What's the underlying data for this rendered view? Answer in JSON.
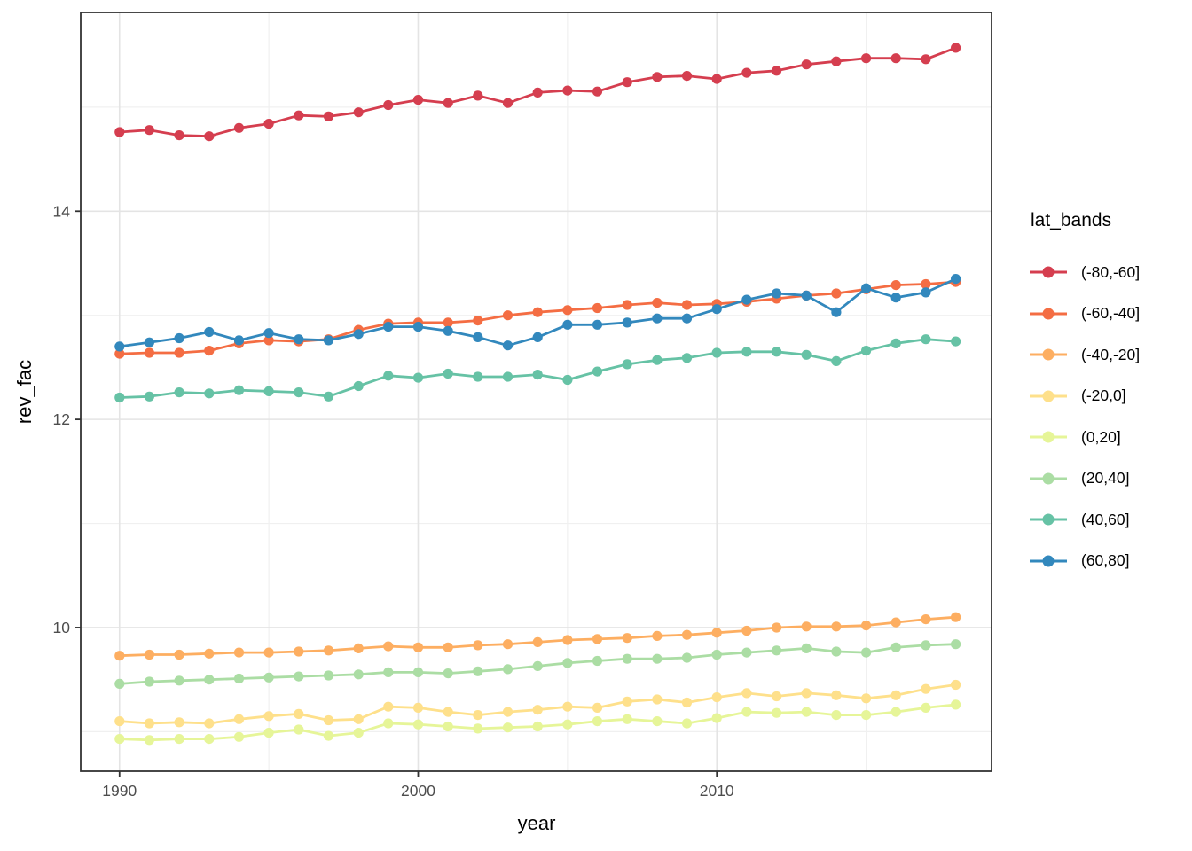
{
  "figure": {
    "background": "#ffffff",
    "panel_background": "#ffffff",
    "panel_border_color": "#333333",
    "major_grid_color": "#e4e4e4",
    "minor_grid_color": "#f0f0f0",
    "tick_mark_color": "#333333",
    "tick_label_color": "#4d4d4d"
  },
  "chart_data": {
    "type": "line",
    "title": "",
    "xlabel": "year",
    "ylabel": "rev_fac",
    "legend_title": "lat_bands",
    "legend_position": "right",
    "grid": "on",
    "marker": "filled-circle",
    "xlim": [
      1988.7,
      2019.2
    ],
    "ylim": [
      8.62,
      15.91
    ],
    "x_major_ticks": [
      1990,
      2000,
      2010
    ],
    "x_minor_gridlines": [
      1995,
      2005,
      2015
    ],
    "y_major_ticks": [
      10,
      12,
      14
    ],
    "y_minor_gridlines": [
      9,
      11,
      13,
      15
    ],
    "x": [
      1990,
      1991,
      1992,
      1993,
      1994,
      1995,
      1996,
      1997,
      1998,
      1999,
      2000,
      2001,
      2002,
      2003,
      2004,
      2005,
      2006,
      2007,
      2008,
      2009,
      2010,
      2011,
      2012,
      2013,
      2014,
      2015,
      2016,
      2017,
      2018
    ],
    "series": [
      {
        "name": "(-80,-60]",
        "color": "#d53e4f",
        "values": [
          14.76,
          14.78,
          14.73,
          14.72,
          14.8,
          14.84,
          14.92,
          14.91,
          14.95,
          15.02,
          15.07,
          15.04,
          15.11,
          15.04,
          15.14,
          15.16,
          15.15,
          15.24,
          15.29,
          15.3,
          15.27,
          15.33,
          15.35,
          15.41,
          15.44,
          15.47,
          15.47,
          15.46,
          15.57
        ]
      },
      {
        "name": "(-60,-40]",
        "color": "#f46d43",
        "values": [
          12.63,
          12.64,
          12.64,
          12.66,
          12.73,
          12.76,
          12.75,
          12.77,
          12.86,
          12.92,
          12.93,
          12.93,
          12.95,
          13.0,
          13.03,
          13.05,
          13.07,
          13.1,
          13.12,
          13.1,
          13.11,
          13.13,
          13.16,
          13.19,
          13.21,
          13.25,
          13.29,
          13.3,
          13.32
        ]
      },
      {
        "name": "(-40,-20]",
        "color": "#fdae61",
        "values": [
          9.73,
          9.74,
          9.74,
          9.75,
          9.76,
          9.76,
          9.77,
          9.78,
          9.8,
          9.82,
          9.81,
          9.81,
          9.83,
          9.84,
          9.86,
          9.88,
          9.89,
          9.9,
          9.92,
          9.93,
          9.95,
          9.97,
          10.0,
          10.01,
          10.01,
          10.02,
          10.05,
          10.08,
          10.1
        ]
      },
      {
        "name": "(-20,0]",
        "color": "#fee08b",
        "values": [
          9.1,
          9.08,
          9.09,
          9.08,
          9.12,
          9.15,
          9.17,
          9.11,
          9.12,
          9.24,
          9.23,
          9.19,
          9.16,
          9.19,
          9.21,
          9.24,
          9.23,
          9.29,
          9.31,
          9.28,
          9.33,
          9.37,
          9.34,
          9.37,
          9.35,
          9.32,
          9.35,
          9.41,
          9.45
        ]
      },
      {
        "name": "(0,20]",
        "color": "#e6f598",
        "values": [
          8.93,
          8.92,
          8.93,
          8.93,
          8.95,
          8.99,
          9.02,
          8.96,
          8.99,
          9.08,
          9.07,
          9.05,
          9.03,
          9.04,
          9.05,
          9.07,
          9.1,
          9.12,
          9.1,
          9.08,
          9.13,
          9.19,
          9.18,
          9.19,
          9.16,
          9.16,
          9.19,
          9.23,
          9.26
        ]
      },
      {
        "name": "(20,40]",
        "color": "#abdda4",
        "values": [
          9.46,
          9.48,
          9.49,
          9.5,
          9.51,
          9.52,
          9.53,
          9.54,
          9.55,
          9.57,
          9.57,
          9.56,
          9.58,
          9.6,
          9.63,
          9.66,
          9.68,
          9.7,
          9.7,
          9.71,
          9.74,
          9.76,
          9.78,
          9.8,
          9.77,
          9.76,
          9.81,
          9.83,
          9.84
        ]
      },
      {
        "name": "(40,60]",
        "color": "#66c2a5",
        "values": [
          12.21,
          12.22,
          12.26,
          12.25,
          12.28,
          12.27,
          12.26,
          12.22,
          12.32,
          12.42,
          12.4,
          12.44,
          12.41,
          12.41,
          12.43,
          12.38,
          12.46,
          12.53,
          12.57,
          12.59,
          12.64,
          12.65,
          12.65,
          12.62,
          12.56,
          12.66,
          12.73,
          12.77,
          12.75
        ]
      },
      {
        "name": "(60,80]",
        "color": "#3288bd",
        "values": [
          12.7,
          12.74,
          12.78,
          12.84,
          12.76,
          12.83,
          12.77,
          12.76,
          12.82,
          12.89,
          12.89,
          12.85,
          12.79,
          12.71,
          12.79,
          12.91,
          12.91,
          12.93,
          12.97,
          12.97,
          13.06,
          13.15,
          13.21,
          13.19,
          13.03,
          13.26,
          13.17,
          13.22,
          13.35
        ]
      }
    ]
  }
}
